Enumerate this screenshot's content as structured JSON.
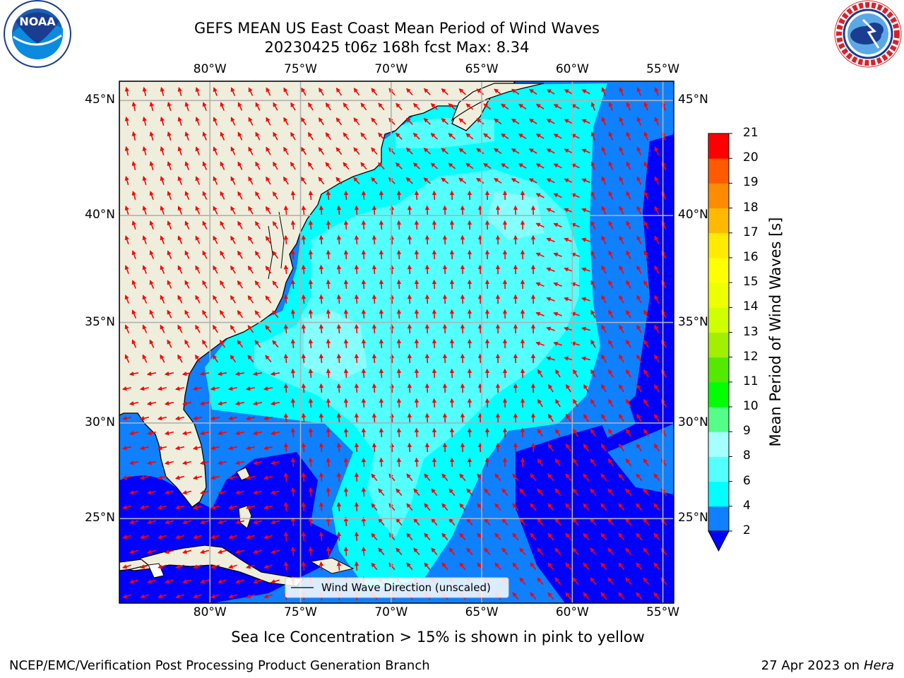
{
  "header": {
    "title_line1": "GEFS MEAN US East Coast Mean Period of Wind Waves",
    "title_line2": "20230425 t06z 168h fcst   Max: 8.34"
  },
  "logos": {
    "noaa_text": "NOAA",
    "noaa_ring_text": "NATIONAL OCEANIC AND ATMOSPHERIC ADMINISTRATION · U.S. DEPARTMENT OF COMMERCE",
    "nws_ring_text": "NATIONAL WEATHER SERVICE"
  },
  "map": {
    "lon_labels": [
      "80°W",
      "75°W",
      "70°W",
      "65°W",
      "60°W",
      "55°W"
    ],
    "lat_labels": [
      "45°N",
      "40°N",
      "35°N",
      "30°N",
      "25°N"
    ],
    "lon_range": [
      -85,
      -54.4
    ],
    "lat_range": [
      20.4,
      45.8
    ],
    "grid": true,
    "colors": {
      "land": "#efeedc",
      "class_2_4": "#0f80ff",
      "class_4_6": "#00ffff",
      "class_6_8": "#53ffff",
      "below_2": "#0000ff",
      "arrow": "#ff0000",
      "grid": "#b0b0b0"
    }
  },
  "legend": {
    "label": "Wind Wave Direction (unscaled)"
  },
  "colorbar": {
    "label": "Mean Period of Wind Waves [s]",
    "ticks": [
      "2",
      "4",
      "6",
      "8",
      "9",
      "10",
      "11",
      "12",
      "13",
      "14",
      "15",
      "16",
      "17",
      "18",
      "19",
      "20",
      "21"
    ],
    "colors": [
      "#0f80ff",
      "#00ffff",
      "#53ffff",
      "#a6ffff",
      "#53ff86",
      "#00ff00",
      "#53ea00",
      "#a0f000",
      "#d0ff00",
      "#eeff00",
      "#ffff00",
      "#ffea00",
      "#ffba00",
      "#ff8c00",
      "#ff5a00",
      "#ff3000",
      "#ff0000"
    ],
    "under_color": "#0000ff"
  },
  "note": "Sea Ice Concentration > 15% is shown in pink to yellow",
  "footer": {
    "left": "NCEP/EMC/Verification Post Processing Product Generation Branch",
    "right_prefix": "27 Apr 2023 on ",
    "right_italic": "Hera"
  }
}
